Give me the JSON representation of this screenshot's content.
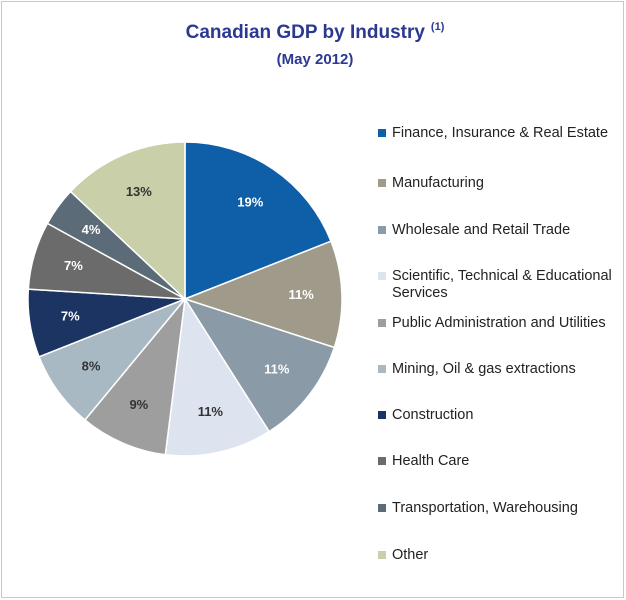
{
  "chart_data": {
    "type": "pie",
    "title": "Canadian GDP by Industry",
    "title_note": "(1)",
    "subtitle": "(May 2012)",
    "categories": [
      "Finance, Insurance & Real Estate",
      "Manufacturing",
      "Wholesale and Retail Trade",
      "Scientific, Technical & Educational Services",
      "Public Administration and Utilities",
      "Mining, Oil & gas extractions",
      "Construction",
      "Health Care",
      "Transportation, Warehousing",
      "Other"
    ],
    "values": [
      19,
      11,
      11,
      11,
      9,
      8,
      7,
      7,
      4,
      13
    ],
    "value_labels": [
      "19%",
      "11%",
      "11%",
      "11%",
      "9%",
      "8%",
      "7%",
      "7%",
      "4%",
      "13%"
    ],
    "colors": [
      "#0f5ea8",
      "#a09a8a",
      "#8a9aa6",
      "#dde4ef",
      "#9e9e9e",
      "#a9b9c3",
      "#1c3461",
      "#6b6b6b",
      "#5b6b77",
      "#c9cfa8"
    ],
    "legend": "right"
  }
}
